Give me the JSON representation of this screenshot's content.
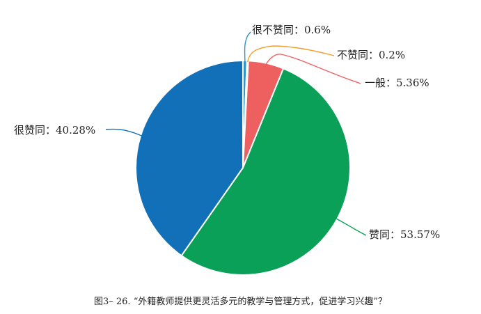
{
  "chart_data": {
    "type": "pie",
    "title": "",
    "slices": [
      {
        "name": "很不赞同",
        "value": 0.6,
        "label": "很不赞同：0.6%",
        "color": "#2f94c6"
      },
      {
        "name": "不赞同",
        "value": 0.2,
        "label": "不赞同：0.2%",
        "color": "#f0a030"
      },
      {
        "name": "一般",
        "value": 5.36,
        "label": "一般：5.36%",
        "color": "#ee5f5f"
      },
      {
        "name": "赞同",
        "value": 53.57,
        "label": "赞同：53.57%",
        "color": "#0ba057"
      },
      {
        "name": "很赞同",
        "value": 40.28,
        "label": "很赞同：40.28%",
        "color": "#1170b8"
      }
    ]
  },
  "caption": "图3– 26. “外籍教师提供更灵活多元的教学与管理方式，促进学习兴趣”？"
}
